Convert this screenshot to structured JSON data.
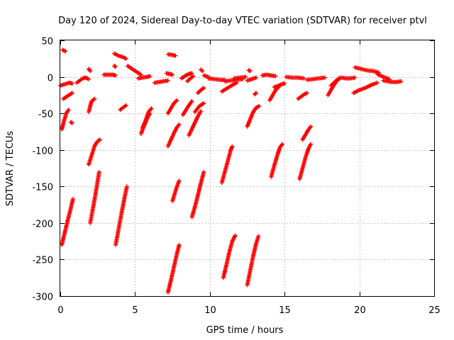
{
  "chart_data": {
    "type": "scatter",
    "title": "Day 120 of 2024, Sidereal Day-to-day VTEC variation (SDTVAR) for receiver ptvl",
    "xlabel": "GPS time / hours",
    "ylabel": "SDTVAR / TECUs",
    "xlim": [
      0,
      25
    ],
    "ylim": [
      -300,
      50
    ],
    "xticks": [
      0,
      5,
      10,
      15,
      20,
      25
    ],
    "yticks": [
      50,
      0,
      -50,
      -100,
      -150,
      -200,
      -250,
      -300
    ],
    "grid": true,
    "marker": "plus",
    "series_color": "#ff0000",
    "arcs": [
      {
        "x": [
          0.0,
          0.3,
          0.6,
          0.8
        ],
        "y": [
          -12,
          -10,
          -8,
          -9
        ]
      },
      {
        "x": [
          0.15,
          0.35
        ],
        "y": [
          37,
          35
        ]
      },
      {
        "x": [
          0.2,
          0.5,
          0.8
        ],
        "y": [
          -30,
          -26,
          -22
        ]
      },
      {
        "x": [
          0.7,
          0.8
        ],
        "y": [
          -62,
          -63
        ]
      },
      {
        "x": [
          0.1,
          0.25,
          0.4,
          0.55
        ],
        "y": [
          -72,
          -60,
          -50,
          -45
        ]
      },
      {
        "x": [
          0.1,
          0.3,
          0.5,
          0.7,
          0.85
        ],
        "y": [
          -230,
          -213,
          -196,
          -180,
          -167
        ]
      },
      {
        "x": [
          1.1,
          1.3,
          1.5,
          1.7,
          1.9
        ],
        "y": [
          -8,
          -5,
          -2,
          -1,
          -3
        ]
      },
      {
        "x": [
          1.9,
          2.0
        ],
        "y": [
          11,
          8
        ]
      },
      {
        "x": [
          1.9,
          2.0,
          2.1,
          2.3
        ],
        "y": [
          -48,
          -40,
          -33,
          -30
        ]
      },
      {
        "x": [
          1.9,
          2.1,
          2.3,
          2.5,
          2.65
        ],
        "y": [
          -120,
          -107,
          -94,
          -88,
          -86
        ]
      },
      {
        "x": [
          2.0,
          2.2,
          2.4,
          2.6
        ],
        "y": [
          -200,
          -178,
          -155,
          -130
        ]
      },
      {
        "x": [
          2.9,
          3.2,
          3.5,
          3.7
        ],
        "y": [
          3,
          3,
          3,
          2
        ]
      },
      {
        "x": [
          3.6,
          3.7
        ],
        "y": [
          15,
          14
        ]
      },
      {
        "x": [
          3.6,
          3.9,
          4.2,
          4.4
        ],
        "y": [
          32,
          29,
          27,
          25
        ]
      },
      {
        "x": [
          3.7,
          3.9,
          4.1,
          4.3,
          4.45
        ],
        "y": [
          -230,
          -208,
          -186,
          -165,
          -150
        ]
      },
      {
        "x": [
          4.0,
          4.2,
          4.4
        ],
        "y": [
          -45,
          -42,
          -39
        ]
      },
      {
        "x": [
          4.5,
          4.8,
          5.1,
          5.4
        ],
        "y": [
          15,
          11,
          7,
          3
        ]
      },
      {
        "x": [
          5.2,
          5.5,
          5.8,
          6.0
        ],
        "y": [
          -2,
          -1,
          0,
          1
        ]
      },
      {
        "x": [
          5.4,
          5.6,
          5.8,
          6.0
        ],
        "y": [
          -78,
          -67,
          -57,
          -50
        ]
      },
      {
        "x": [
          5.5,
          5.7,
          5.9,
          6.1
        ],
        "y": [
          -70,
          -60,
          -48,
          -43
        ]
      },
      {
        "x": [
          6.3,
          6.6,
          6.9,
          7.2
        ],
        "y": [
          -8,
          -7,
          -6,
          -5
        ]
      },
      {
        "x": [
          7.1,
          7.3,
          7.5
        ],
        "y": [
          5,
          4,
          3
        ]
      },
      {
        "x": [
          7.2,
          7.5,
          7.7
        ],
        "y": [
          31,
          30,
          29
        ]
      },
      {
        "x": [
          7.2,
          7.4,
          7.6,
          7.8
        ],
        "y": [
          -50,
          -43,
          -36,
          -32
        ]
      },
      {
        "x": [
          7.2,
          7.4,
          7.6,
          7.8,
          7.95
        ],
        "y": [
          -95,
          -86,
          -77,
          -69,
          -65
        ]
      },
      {
        "x": [
          7.2,
          7.4,
          7.6,
          7.8,
          7.95
        ],
        "y": [
          -295,
          -278,
          -260,
          -242,
          -230
        ]
      },
      {
        "x": [
          7.5,
          7.65,
          7.8,
          7.95
        ],
        "y": [
          -170,
          -160,
          -150,
          -142
        ]
      },
      {
        "x": [
          8.1,
          8.4,
          8.6,
          8.8
        ],
        "y": [
          -2,
          2,
          4,
          5
        ]
      },
      {
        "x": [
          8.2,
          8.5,
          8.8
        ],
        "y": [
          -52,
          -42,
          -33
        ]
      },
      {
        "x": [
          8.5,
          8.7,
          8.9
        ],
        "y": [
          -6,
          -2,
          1
        ]
      },
      {
        "x": [
          8.6,
          8.9,
          9.2,
          9.4
        ],
        "y": [
          -80,
          -67,
          -54,
          -47
        ]
      },
      {
        "x": [
          8.8,
          9.0,
          9.2,
          9.4,
          9.6
        ],
        "y": [
          -192,
          -178,
          -162,
          -145,
          -130
        ]
      },
      {
        "x": [
          9.0,
          9.3,
          9.6
        ],
        "y": [
          -48,
          -40,
          -36
        ]
      },
      {
        "x": [
          9.2,
          9.4,
          9.6
        ],
        "y": [
          -22,
          -18,
          -15
        ]
      },
      {
        "x": [
          9.4,
          9.5
        ],
        "y": [
          10,
          8
        ]
      },
      {
        "x": [
          9.6,
          9.9
        ],
        "y": [
          2,
          0
        ]
      },
      {
        "x": [
          9.9,
          10.3,
          10.7,
          11.0
        ],
        "y": [
          -2,
          -3,
          -4,
          -4
        ]
      },
      {
        "x": [
          10.8,
          11.0,
          11.2,
          11.4,
          11.5
        ],
        "y": [
          -145,
          -130,
          -115,
          -100,
          -95
        ]
      },
      {
        "x": [
          10.9,
          11.1,
          11.3,
          11.5,
          11.7
        ],
        "y": [
          -275,
          -258,
          -240,
          -225,
          -217
        ]
      },
      {
        "x": [
          10.8,
          11.2,
          11.6,
          11.8
        ],
        "y": [
          -20,
          -15,
          -10,
          -8
        ]
      },
      {
        "x": [
          11.0,
          11.4,
          11.8,
          12.2
        ],
        "y": [
          -6,
          -5,
          -4,
          -3
        ]
      },
      {
        "x": [
          11.6,
          12.0,
          12.4
        ],
        "y": [
          -2,
          -1,
          0
        ]
      },
      {
        "x": [
          12.5,
          12.8,
          13.1
        ],
        "y": [
          -5,
          -3,
          -1
        ]
      },
      {
        "x": [
          12.6,
          12.7
        ],
        "y": [
          9,
          8
        ]
      },
      {
        "x": [
          12.5,
          12.7,
          12.9,
          13.1,
          13.3
        ],
        "y": [
          -68,
          -58,
          -48,
          -42,
          -40
        ]
      },
      {
        "x": [
          12.5,
          12.7,
          12.9,
          13.1,
          13.25
        ],
        "y": [
          -285,
          -265,
          -245,
          -228,
          -218
        ]
      },
      {
        "x": [
          13.0,
          13.1
        ],
        "y": [
          -24,
          -22
        ]
      },
      {
        "x": [
          13.5,
          13.8,
          14.1,
          14.4
        ],
        "y": [
          2,
          3,
          2,
          1
        ]
      },
      {
        "x": [
          14.0,
          14.2,
          14.4,
          14.6
        ],
        "y": [
          -32,
          -25,
          -18,
          -14
        ]
      },
      {
        "x": [
          14.3,
          14.6,
          14.8,
          15.0
        ],
        "y": [
          -14,
          -12,
          -10,
          -9
        ]
      },
      {
        "x": [
          14.1,
          14.3,
          14.5,
          14.7,
          14.85
        ],
        "y": [
          -137,
          -122,
          -108,
          -96,
          -92
        ]
      },
      {
        "x": [
          15.1,
          15.5,
          15.9,
          16.3
        ],
        "y": [
          0,
          -1,
          -1,
          -2
        ]
      },
      {
        "x": [
          15.9,
          16.1,
          16.3,
          16.5
        ],
        "y": [
          -30,
          -27,
          -24,
          -22
        ]
      },
      {
        "x": [
          16.0,
          16.2,
          16.4,
          16.6,
          16.75
        ],
        "y": [
          -140,
          -125,
          -110,
          -98,
          -92
        ]
      },
      {
        "x": [
          16.2,
          16.4,
          16.6,
          16.75
        ],
        "y": [
          -86,
          -79,
          -72,
          -68
        ]
      },
      {
        "x": [
          16.5,
          16.9,
          17.3,
          17.7
        ],
        "y": [
          -4,
          -3,
          -2,
          -1
        ]
      },
      {
        "x": [
          17.9,
          18.1,
          18.3,
          18.5,
          18.7
        ],
        "y": [
          -25,
          -18,
          -11,
          -5,
          -2
        ]
      },
      {
        "x": [
          18.1,
          18.3,
          18.5,
          18.7
        ],
        "y": [
          -12,
          -8,
          -4,
          -1
        ]
      },
      {
        "x": [
          18.8,
          19.1,
          19.4,
          19.7
        ],
        "y": [
          -1,
          -2,
          -2,
          -1
        ]
      },
      {
        "x": [
          19.7,
          20.1,
          20.5,
          20.9,
          21.3
        ],
        "y": [
          13,
          11,
          9,
          8,
          6
        ]
      },
      {
        "x": [
          19.6,
          20.0,
          20.4,
          20.8,
          21.2
        ],
        "y": [
          -22,
          -18,
          -15,
          -11,
          -8
        ]
      },
      {
        "x": [
          21.2,
          21.6,
          22.0
        ],
        "y": [
          4,
          0,
          -3
        ]
      },
      {
        "x": [
          21.6,
          21.9,
          22.2,
          22.5,
          22.8
        ],
        "y": [
          -5,
          -6,
          -7,
          -7,
          -6
        ]
      }
    ]
  }
}
